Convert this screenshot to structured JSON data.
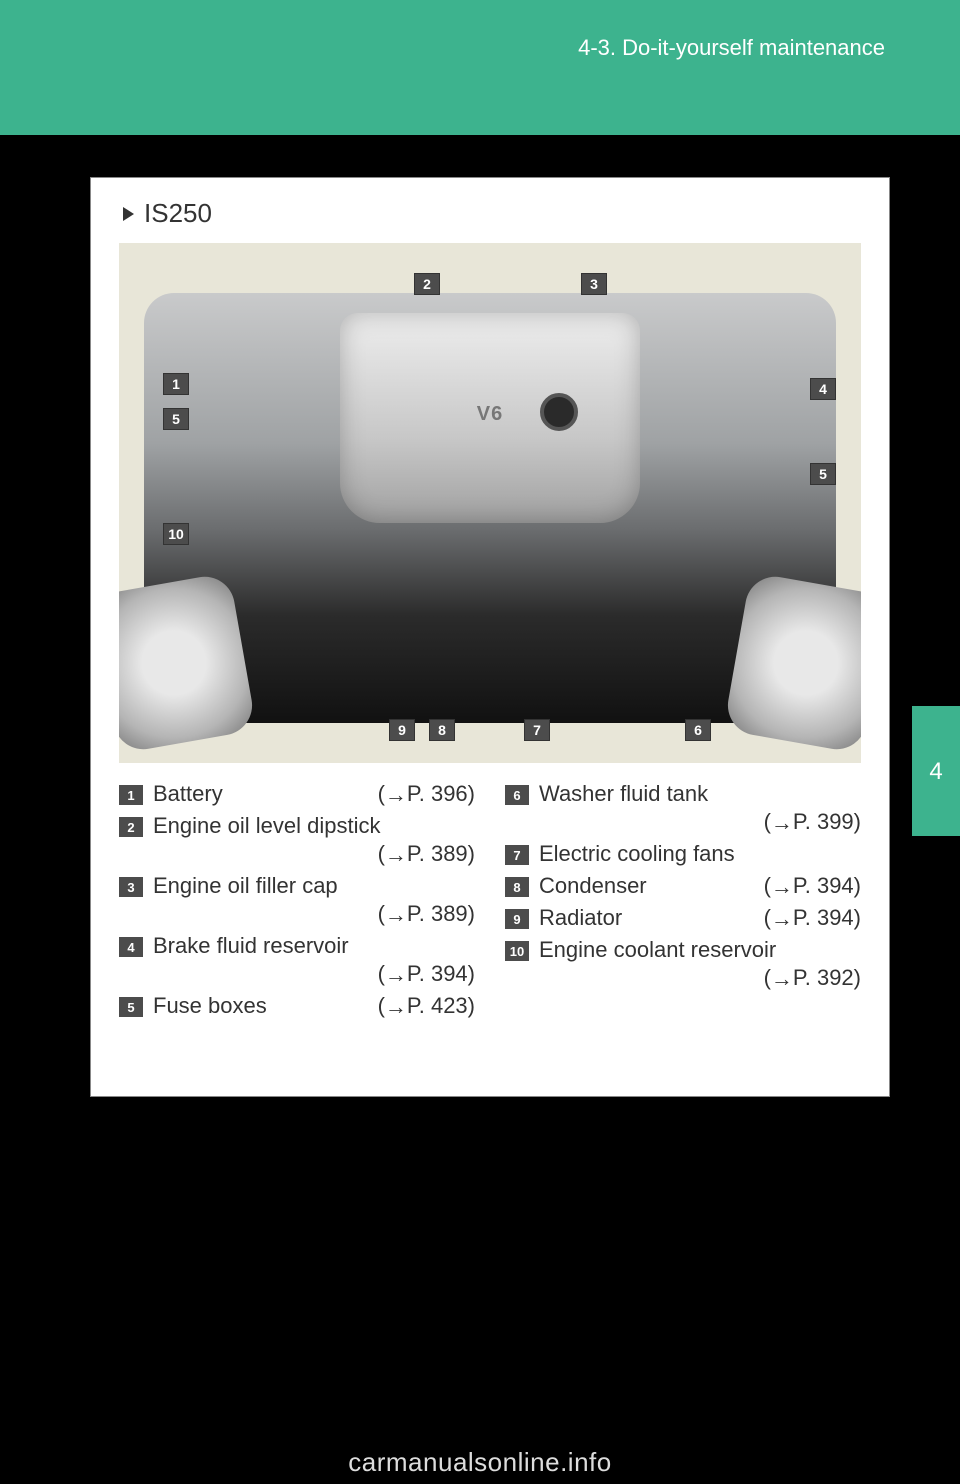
{
  "header": {
    "section_title": "4-3. Do-it-yourself maintenance"
  },
  "side_tab": {
    "chapter": "4"
  },
  "content": {
    "model": "IS250",
    "diagram_callouts": [
      "1",
      "2",
      "3",
      "4",
      "5",
      "5",
      "6",
      "7",
      "8",
      "9",
      "10"
    ],
    "legend_left": [
      {
        "num": "1",
        "label": "Battery",
        "page": "P. 396",
        "inline": true
      },
      {
        "num": "2",
        "label": "Engine oil level dipstick",
        "page": "P. 389",
        "inline": false
      },
      {
        "num": "3",
        "label": "Engine oil filler cap",
        "page": "P. 389",
        "inline": false
      },
      {
        "num": "4",
        "label": "Brake fluid reservoir",
        "page": "P. 394",
        "inline": false
      },
      {
        "num": "5",
        "label": "Fuse boxes",
        "page": "P. 423",
        "inline": true
      }
    ],
    "legend_right": [
      {
        "num": "6",
        "label": "Washer fluid tank",
        "page": "P. 399",
        "inline": false
      },
      {
        "num": "7",
        "label": "Electric cooling fans",
        "page": "",
        "inline": true
      },
      {
        "num": "8",
        "label": "Condenser",
        "page": "P. 394",
        "inline": true
      },
      {
        "num": "9",
        "label": "Radiator",
        "page": "P. 394",
        "inline": true
      },
      {
        "num": "10",
        "label": "Engine coolant reservoir",
        "page": "P. 392",
        "inline": false
      }
    ]
  },
  "watermark": "carmanualsonline.info",
  "colors": {
    "accent": "#3db38e",
    "page_bg": "#000000",
    "box_bg": "#ffffff",
    "diagram_bg": "#e8e6d8",
    "callout_bg": "#4c4c4c",
    "text": "#333333"
  }
}
